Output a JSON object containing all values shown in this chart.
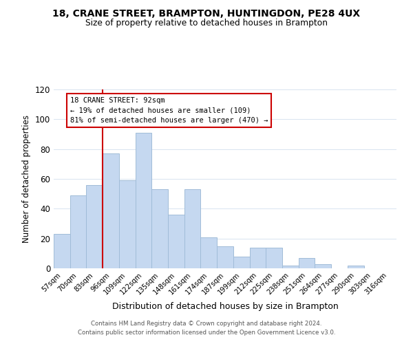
{
  "title": "18, CRANE STREET, BRAMPTON, HUNTINGDON, PE28 4UX",
  "subtitle": "Size of property relative to detached houses in Brampton",
  "xlabel": "Distribution of detached houses by size in Brampton",
  "ylabel": "Number of detached properties",
  "bar_labels": [
    "57sqm",
    "70sqm",
    "83sqm",
    "96sqm",
    "109sqm",
    "122sqm",
    "135sqm",
    "148sqm",
    "161sqm",
    "174sqm",
    "187sqm",
    "199sqm",
    "212sqm",
    "225sqm",
    "238sqm",
    "251sqm",
    "264sqm",
    "277sqm",
    "290sqm",
    "303sqm",
    "316sqm"
  ],
  "bar_values": [
    23,
    49,
    56,
    77,
    59,
    91,
    53,
    36,
    53,
    21,
    15,
    8,
    14,
    14,
    2,
    7,
    3,
    0,
    2,
    0,
    0
  ],
  "bar_color": "#c5d8f0",
  "bar_edge_color": "#a0bcd8",
  "vline_color": "#cc0000",
  "ylim": [
    0,
    120
  ],
  "yticks": [
    0,
    20,
    40,
    60,
    80,
    100,
    120
  ],
  "annotation_title": "18 CRANE STREET: 92sqm",
  "annotation_line1": "← 19% of detached houses are smaller (109)",
  "annotation_line2": "81% of semi-detached houses are larger (470) →",
  "annotation_box_color": "#ffffff",
  "annotation_box_edge_color": "#cc0000",
  "footer_line1": "Contains HM Land Registry data © Crown copyright and database right 2024.",
  "footer_line2": "Contains public sector information licensed under the Open Government Licence v3.0.",
  "background_color": "#ffffff",
  "grid_color": "#d8e4f0"
}
